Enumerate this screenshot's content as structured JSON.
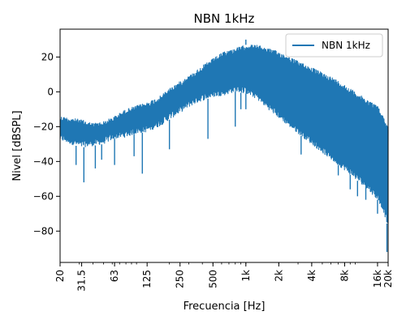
{
  "chart_data": {
    "type": "line",
    "title": "NBN 1kHz",
    "xlabel": "Frecuencia [Hz]",
    "ylabel": "Nivel [dBSPL]",
    "x_scale": "log",
    "xlim": [
      20,
      20000
    ],
    "ylim": [
      -98,
      36
    ],
    "x_ticks": [
      {
        "value": 20,
        "label": "20"
      },
      {
        "value": 31.5,
        "label": "31.5"
      },
      {
        "value": 63,
        "label": "63"
      },
      {
        "value": 125,
        "label": "125"
      },
      {
        "value": 250,
        "label": "250"
      },
      {
        "value": 500,
        "label": "500"
      },
      {
        "value": 1000,
        "label": "1k"
      },
      {
        "value": 2000,
        "label": "2k"
      },
      {
        "value": 4000,
        "label": "4k"
      },
      {
        "value": 8000,
        "label": "8k"
      },
      {
        "value": 16000,
        "label": "16k"
      },
      {
        "value": 20000,
        "label": "20k"
      }
    ],
    "y_ticks": [
      {
        "value": 20,
        "label": "20"
      },
      {
        "value": 0,
        "label": "0"
      },
      {
        "value": -20,
        "label": "−20"
      },
      {
        "value": -40,
        "label": "−40"
      },
      {
        "value": -60,
        "label": "−60"
      },
      {
        "value": -80,
        "label": "−80"
      }
    ],
    "grid": false,
    "legend_position": "top-right",
    "series": [
      {
        "name": "NBN 1kHz",
        "color": "#1f77b4",
        "envelope_upper": {
          "x": [
            20,
            25,
            31.5,
            40,
            50,
            63,
            80,
            100,
            125,
            160,
            200,
            250,
            315,
            400,
            500,
            630,
            800,
            1000,
            1250,
            1600,
            2000,
            2500,
            3150,
            4000,
            5000,
            6300,
            8000,
            10000,
            12500,
            16000,
            18000,
            20000
          ],
          "y": [
            -14,
            -15,
            -16,
            -18,
            -17,
            -14,
            -10,
            -8,
            -6,
            -3,
            2,
            6,
            10,
            15,
            19,
            23,
            25,
            27,
            27,
            25,
            23,
            20,
            17,
            14,
            11,
            8,
            4,
            0,
            -4,
            -8,
            -14,
            -20
          ]
        },
        "envelope_lower": {
          "x": [
            20,
            25,
            31.5,
            40,
            50,
            63,
            80,
            100,
            125,
            160,
            200,
            250,
            315,
            400,
            500,
            630,
            800,
            1000,
            1250,
            1600,
            2000,
            2500,
            3150,
            4000,
            5000,
            6300,
            8000,
            10000,
            12500,
            16000,
            18000,
            20000
          ],
          "y": [
            -28,
            -30,
            -32,
            -31,
            -30,
            -27,
            -26,
            -24,
            -23,
            -20,
            -16,
            -12,
            -8,
            -5,
            -3,
            -2,
            0,
            -1,
            -4,
            -10,
            -15,
            -20,
            -25,
            -30,
            -35,
            -40,
            -45,
            -50,
            -55,
            -62,
            -68,
            -78
          ]
        },
        "dips": [
          {
            "x": 28,
            "y": -42
          },
          {
            "x": 33,
            "y": -52
          },
          {
            "x": 42,
            "y": -44
          },
          {
            "x": 48,
            "y": -39
          },
          {
            "x": 63,
            "y": -42
          },
          {
            "x": 95,
            "y": -37
          },
          {
            "x": 113,
            "y": -47
          },
          {
            "x": 200,
            "y": -33
          },
          {
            "x": 450,
            "y": -27
          },
          {
            "x": 800,
            "y": -20
          },
          {
            "x": 900,
            "y": -10
          },
          {
            "x": 1000,
            "y": -10
          },
          {
            "x": 3200,
            "y": -36
          },
          {
            "x": 7000,
            "y": -48
          },
          {
            "x": 9000,
            "y": -56
          },
          {
            "x": 10500,
            "y": -60
          },
          {
            "x": 12500,
            "y": -62
          },
          {
            "x": 16000,
            "y": -70
          },
          {
            "x": 19500,
            "y": -92
          }
        ],
        "peaks": [
          {
            "x": 1000,
            "y": 30
          }
        ]
      }
    ]
  }
}
